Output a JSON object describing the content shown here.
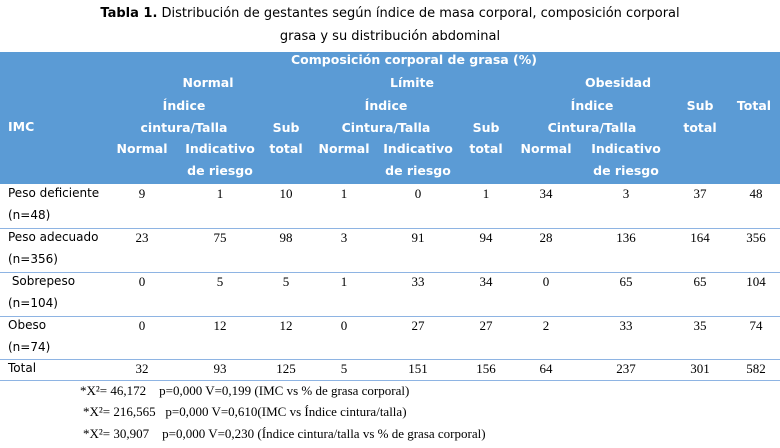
{
  "caption": {
    "bold": "Tabla 1.",
    "line1": " Distribución de gestantes según índice de masa corporal, composición corporal",
    "line2": "grasa y su distribución abdominal"
  },
  "header": {
    "group_title": "Composición corporal de grasa (%)",
    "imc": "IMC",
    "normal": "Normal",
    "limite": "Límite",
    "obesidad": "Obesidad",
    "indice": "Índice",
    "cintura_talla_lower": "cintura/Talla",
    "cintura_talla_upper": "Cintura/Talla",
    "sub": "Sub",
    "total_lower": "total",
    "total": "Total",
    "col_normal": "Normal",
    "indicativo": "Indicativo",
    "de_riesgo": "de riesgo"
  },
  "rows": [
    {
      "label1": "Peso deficiente",
      "label2": "(n=48)",
      "values": [
        "9",
        "1",
        "10",
        "1",
        "0",
        "1",
        "34",
        "3",
        "37",
        "48"
      ]
    },
    {
      "label1": "Peso adecuado",
      "label2": "(n=356)",
      "values": [
        "23",
        "75",
        "98",
        "3",
        "91",
        "94",
        "28",
        "136",
        "164",
        "356"
      ]
    },
    {
      "label1": " Sobrepeso",
      "label2": "(n=104)",
      "values": [
        "0",
        "5",
        "5",
        "1",
        "33",
        "34",
        "0",
        "65",
        "65",
        "104"
      ]
    },
    {
      "label1": "Obeso",
      "label2": "(n=74)",
      "values": [
        "0",
        "12",
        "12",
        "0",
        "27",
        "27",
        "2",
        "33",
        "35",
        "74"
      ]
    },
    {
      "label1": "Total",
      "label2": "",
      "values": [
        "32",
        "93",
        "125",
        "5",
        "151",
        "156",
        "64",
        "237",
        "301",
        "582"
      ]
    }
  ],
  "notes": [
    "*X²= 46,172    p=0,000 V=0,199 (IMC vs % de grasa corporal)",
    "*X²= 216,565   p=0,000 V=0,610(IMC vs Índice cintura/talla)",
    "*X²= 30,907    p=0,000 V=0,230 (Índice cintura/talla vs % de grasa corporal)"
  ]
}
